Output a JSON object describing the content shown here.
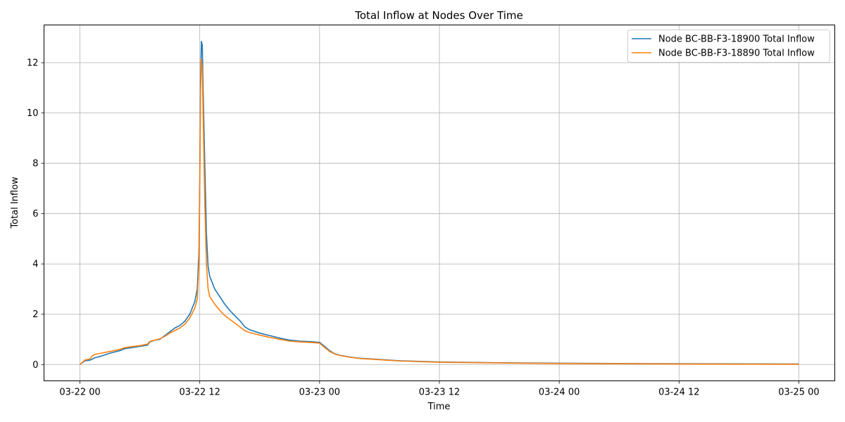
{
  "chart_data": {
    "type": "line",
    "title": "Total Inflow at Nodes Over Time",
    "xlabel": "Time",
    "ylabel": "Total Inflow",
    "grid": true,
    "legend_position": "top-right",
    "xlim": [
      "2024-03-22 00:00",
      "2024-03-25 00:00"
    ],
    "ylim": [
      -0.65,
      13.5
    ],
    "x_ticks": [
      {
        "value": "2024-03-22 00:00",
        "label": "03-22 00"
      },
      {
        "value": "2024-03-22 12:00",
        "label": "03-22 12"
      },
      {
        "value": "2024-03-23 00:00",
        "label": "03-23 00"
      },
      {
        "value": "2024-03-23 12:00",
        "label": "03-23 12"
      },
      {
        "value": "2024-03-24 00:00",
        "label": "03-24 00"
      },
      {
        "value": "2024-03-24 12:00",
        "label": "03-24 12"
      },
      {
        "value": "2024-03-25 00:00",
        "label": "03-25 00"
      }
    ],
    "y_ticks": [
      {
        "value": 0,
        "label": "0"
      },
      {
        "value": 2,
        "label": "2"
      },
      {
        "value": 4,
        "label": "4"
      },
      {
        "value": 6,
        "label": "6"
      },
      {
        "value": 8,
        "label": "8"
      },
      {
        "value": 10,
        "label": "10"
      },
      {
        "value": 12,
        "label": "12"
      }
    ],
    "series": [
      {
        "name": "Node BC-BB-F3-18900 Total Inflow",
        "color": "#1f77b4",
        "points": [
          [
            "2024-03-22 00:00",
            0.0
          ],
          [
            "2024-03-22 00:30",
            0.15
          ],
          [
            "2024-03-22 01:00",
            0.17
          ],
          [
            "2024-03-22 01:30",
            0.27
          ],
          [
            "2024-03-22 02:00",
            0.32
          ],
          [
            "2024-03-22 02:30",
            0.38
          ],
          [
            "2024-03-22 03:00",
            0.45
          ],
          [
            "2024-03-22 04:00",
            0.55
          ],
          [
            "2024-03-22 04:30",
            0.63
          ],
          [
            "2024-03-22 05:00",
            0.66
          ],
          [
            "2024-03-22 06:00",
            0.72
          ],
          [
            "2024-03-22 06:45",
            0.77
          ],
          [
            "2024-03-22 07:00",
            0.9
          ],
          [
            "2024-03-22 07:30",
            0.97
          ],
          [
            "2024-03-22 08:00",
            1.0
          ],
          [
            "2024-03-22 08:30",
            1.15
          ],
          [
            "2024-03-22 09:00",
            1.3
          ],
          [
            "2024-03-22 09:30",
            1.45
          ],
          [
            "2024-03-22 10:00",
            1.55
          ],
          [
            "2024-03-22 10:30",
            1.72
          ],
          [
            "2024-03-22 11:00",
            2.0
          ],
          [
            "2024-03-22 11:30",
            2.5
          ],
          [
            "2024-03-22 11:45",
            3.0
          ],
          [
            "2024-03-22 11:55",
            4.5
          ],
          [
            "2024-03-22 12:00",
            7.5
          ],
          [
            "2024-03-22 12:05",
            11.5
          ],
          [
            "2024-03-22 12:10",
            12.85
          ],
          [
            "2024-03-22 12:15",
            12.7
          ],
          [
            "2024-03-22 12:20",
            11.0
          ],
          [
            "2024-03-22 12:30",
            8.0
          ],
          [
            "2024-03-22 12:40",
            5.2
          ],
          [
            "2024-03-22 12:50",
            3.9
          ],
          [
            "2024-03-22 13:00",
            3.5
          ],
          [
            "2024-03-22 13:30",
            3.0
          ],
          [
            "2024-03-22 14:00",
            2.7
          ],
          [
            "2024-03-22 14:30",
            2.4
          ],
          [
            "2024-03-22 15:00",
            2.15
          ],
          [
            "2024-03-22 15:30",
            1.95
          ],
          [
            "2024-03-22 16:00",
            1.75
          ],
          [
            "2024-03-22 16:30",
            1.5
          ],
          [
            "2024-03-22 17:00",
            1.38
          ],
          [
            "2024-03-22 18:00",
            1.25
          ],
          [
            "2024-03-22 19:00",
            1.15
          ],
          [
            "2024-03-22 20:00",
            1.05
          ],
          [
            "2024-03-22 21:00",
            0.97
          ],
          [
            "2024-03-22 22:00",
            0.93
          ],
          [
            "2024-03-22 23:00",
            0.91
          ],
          [
            "2024-03-23 00:00",
            0.88
          ],
          [
            "2024-03-23 00:30",
            0.72
          ],
          [
            "2024-03-23 01:00",
            0.55
          ],
          [
            "2024-03-23 01:30",
            0.43
          ],
          [
            "2024-03-23 02:00",
            0.37
          ],
          [
            "2024-03-23 03:00",
            0.3
          ],
          [
            "2024-03-23 04:00",
            0.25
          ],
          [
            "2024-03-23 06:00",
            0.2
          ],
          [
            "2024-03-23 08:00",
            0.15
          ],
          [
            "2024-03-23 12:00",
            0.1
          ],
          [
            "2024-03-23 18:00",
            0.07
          ],
          [
            "2024-03-24 00:00",
            0.05
          ],
          [
            "2024-03-24 12:00",
            0.03
          ],
          [
            "2024-03-25 00:00",
            0.02
          ]
        ]
      },
      {
        "name": "Node BC-BB-F3-18890 Total Inflow",
        "color": "#ff7f0e",
        "points": [
          [
            "2024-03-22 00:00",
            0.0
          ],
          [
            "2024-03-22 00:30",
            0.18
          ],
          [
            "2024-03-22 01:00",
            0.22
          ],
          [
            "2024-03-22 01:15",
            0.35
          ],
          [
            "2024-03-22 01:30",
            0.4
          ],
          [
            "2024-03-22 02:00",
            0.44
          ],
          [
            "2024-03-22 03:00",
            0.52
          ],
          [
            "2024-03-22 04:00",
            0.6
          ],
          [
            "2024-03-22 04:30",
            0.67
          ],
          [
            "2024-03-22 05:00",
            0.7
          ],
          [
            "2024-03-22 06:00",
            0.75
          ],
          [
            "2024-03-22 06:45",
            0.81
          ],
          [
            "2024-03-22 07:00",
            0.92
          ],
          [
            "2024-03-22 07:30",
            0.97
          ],
          [
            "2024-03-22 08:00",
            1.02
          ],
          [
            "2024-03-22 08:30",
            1.12
          ],
          [
            "2024-03-22 09:00",
            1.25
          ],
          [
            "2024-03-22 09:30",
            1.35
          ],
          [
            "2024-03-22 10:00",
            1.45
          ],
          [
            "2024-03-22 10:30",
            1.6
          ],
          [
            "2024-03-22 11:00",
            1.85
          ],
          [
            "2024-03-22 11:30",
            2.25
          ],
          [
            "2024-03-22 11:45",
            2.6
          ],
          [
            "2024-03-22 11:55",
            4.0
          ],
          [
            "2024-03-22 12:00",
            7.0
          ],
          [
            "2024-03-22 12:05",
            11.0
          ],
          [
            "2024-03-22 12:10",
            12.15
          ],
          [
            "2024-03-22 12:15",
            11.8
          ],
          [
            "2024-03-22 12:20",
            10.0
          ],
          [
            "2024-03-22 12:30",
            6.5
          ],
          [
            "2024-03-22 12:40",
            4.0
          ],
          [
            "2024-03-22 12:50",
            3.0
          ],
          [
            "2024-03-22 13:00",
            2.7
          ],
          [
            "2024-03-22 13:30",
            2.4
          ],
          [
            "2024-03-22 14:00",
            2.15
          ],
          [
            "2024-03-22 14:30",
            1.95
          ],
          [
            "2024-03-22 15:00",
            1.8
          ],
          [
            "2024-03-22 15:30",
            1.65
          ],
          [
            "2024-03-22 16:00",
            1.5
          ],
          [
            "2024-03-22 16:30",
            1.35
          ],
          [
            "2024-03-22 17:00",
            1.27
          ],
          [
            "2024-03-22 18:00",
            1.17
          ],
          [
            "2024-03-22 19:00",
            1.08
          ],
          [
            "2024-03-22 20:00",
            1.0
          ],
          [
            "2024-03-22 21:00",
            0.93
          ],
          [
            "2024-03-22 22:00",
            0.9
          ],
          [
            "2024-03-22 23:00",
            0.88
          ],
          [
            "2024-03-23 00:00",
            0.85
          ],
          [
            "2024-03-23 00:30",
            0.68
          ],
          [
            "2024-03-23 01:00",
            0.52
          ],
          [
            "2024-03-23 01:30",
            0.42
          ],
          [
            "2024-03-23 02:00",
            0.36
          ],
          [
            "2024-03-23 03:00",
            0.29
          ],
          [
            "2024-03-23 04:00",
            0.24
          ],
          [
            "2024-03-23 06:00",
            0.19
          ],
          [
            "2024-03-23 08:00",
            0.14
          ],
          [
            "2024-03-23 12:00",
            0.09
          ],
          [
            "2024-03-23 18:00",
            0.06
          ],
          [
            "2024-03-24 00:00",
            0.04
          ],
          [
            "2024-03-24 12:00",
            0.02
          ],
          [
            "2024-03-25 00:00",
            0.01
          ]
        ]
      }
    ]
  }
}
